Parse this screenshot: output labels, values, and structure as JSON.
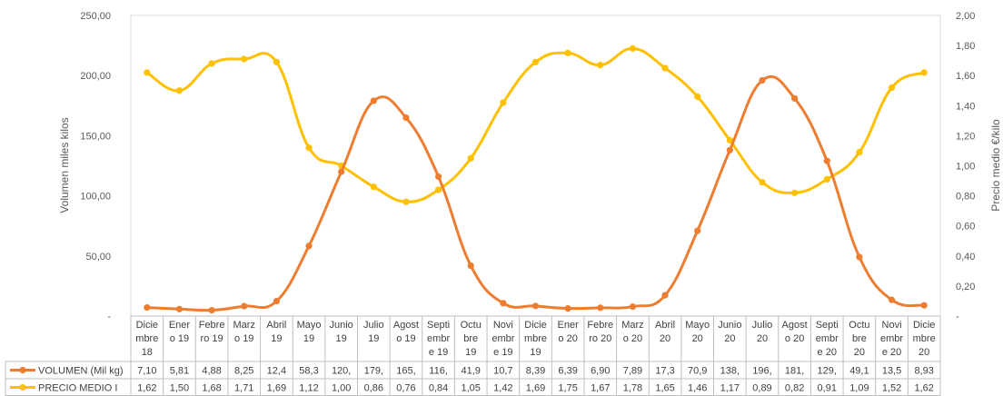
{
  "chart_data": {
    "type": "line",
    "categories": [
      [
        "Dicie",
        "mbre",
        "18"
      ],
      [
        "Ener",
        "o 19"
      ],
      [
        "Febre",
        "ro 19"
      ],
      [
        "Marz",
        "o 19"
      ],
      [
        "Abril",
        "19"
      ],
      [
        "Mayo",
        "19"
      ],
      [
        "Junio",
        "19"
      ],
      [
        "Julio",
        "19"
      ],
      [
        "Agost",
        "o 19"
      ],
      [
        "Septi",
        "embr",
        "e 19"
      ],
      [
        "Octu",
        "bre",
        "19"
      ],
      [
        "Novi",
        "embr",
        "e 19"
      ],
      [
        "Dicie",
        "mbre",
        "19"
      ],
      [
        "Ener",
        "o 20"
      ],
      [
        "Febre",
        "ro 20"
      ],
      [
        "Marz",
        "o 20"
      ],
      [
        "Abril",
        "20"
      ],
      [
        "Mayo",
        "20"
      ],
      [
        "Junio",
        "20"
      ],
      [
        "Julio",
        "20"
      ],
      [
        "Agost",
        "o 20"
      ],
      [
        "Septi",
        "embr",
        "e 20"
      ],
      [
        "Octu",
        "bre",
        "20"
      ],
      [
        "Novi",
        "embr",
        "e 20"
      ],
      [
        "Dicie",
        "mbre",
        "20"
      ]
    ],
    "series": [
      {
        "name": "VOLUMEN (Mil kg)",
        "axis": "left",
        "color": "#ED7D31",
        "values": [
          7.1,
          5.81,
          4.88,
          8.25,
          12.4,
          58.3,
          120,
          179,
          165,
          116,
          41.9,
          10.7,
          8.39,
          6.39,
          6.9,
          7.89,
          17.3,
          70.9,
          138,
          196,
          181,
          129,
          49.1,
          13.5,
          8.93
        ],
        "table_labels": [
          "7,10",
          "5,81",
          "4,88",
          "8,25",
          "12,4",
          "58,3",
          "120,",
          "179,",
          "165,",
          "116,",
          "41,9",
          "10,7",
          "8,39",
          "6,39",
          "6,90",
          "7,89",
          "17,3",
          "70,9",
          "138,",
          "196,",
          "181,",
          "129,",
          "49,1",
          "13,5",
          "8,93"
        ]
      },
      {
        "name": "PRECIO MEDIO I",
        "axis": "right",
        "color": "#FFC000",
        "values": [
          1.62,
          1.5,
          1.68,
          1.71,
          1.69,
          1.12,
          1.0,
          0.86,
          0.76,
          0.84,
          1.05,
          1.42,
          1.69,
          1.75,
          1.67,
          1.78,
          1.65,
          1.46,
          1.17,
          0.89,
          0.82,
          0.91,
          1.09,
          1.52,
          1.62
        ],
        "table_labels": [
          "1,62",
          "1,50",
          "1,68",
          "1,71",
          "1,69",
          "1,12",
          "1,00",
          "0,86",
          "0,76",
          "0,84",
          "1,05",
          "1,42",
          "1,69",
          "1,75",
          "1,67",
          "1,78",
          "1,65",
          "1,46",
          "1,17",
          "0,89",
          "0,82",
          "0,91",
          "1,09",
          "1,52",
          "1,62"
        ]
      }
    ],
    "ylabel": "Volumen miles kilos",
    "ylabel_right": "Precio medio €/kilo",
    "ylim": [
      0,
      250
    ],
    "ylim_right": [
      0,
      2
    ],
    "y_ticks": [
      "-",
      "50,00",
      "100,00",
      "150,00",
      "200,00",
      "250,00"
    ],
    "y_right_ticks": [
      "-",
      "0,20",
      "0,40",
      "0,60",
      "0,80",
      "1,00",
      "1,20",
      "1,40",
      "1,60",
      "1,80",
      "2,00"
    ],
    "grid": false,
    "legend": "data-table"
  }
}
